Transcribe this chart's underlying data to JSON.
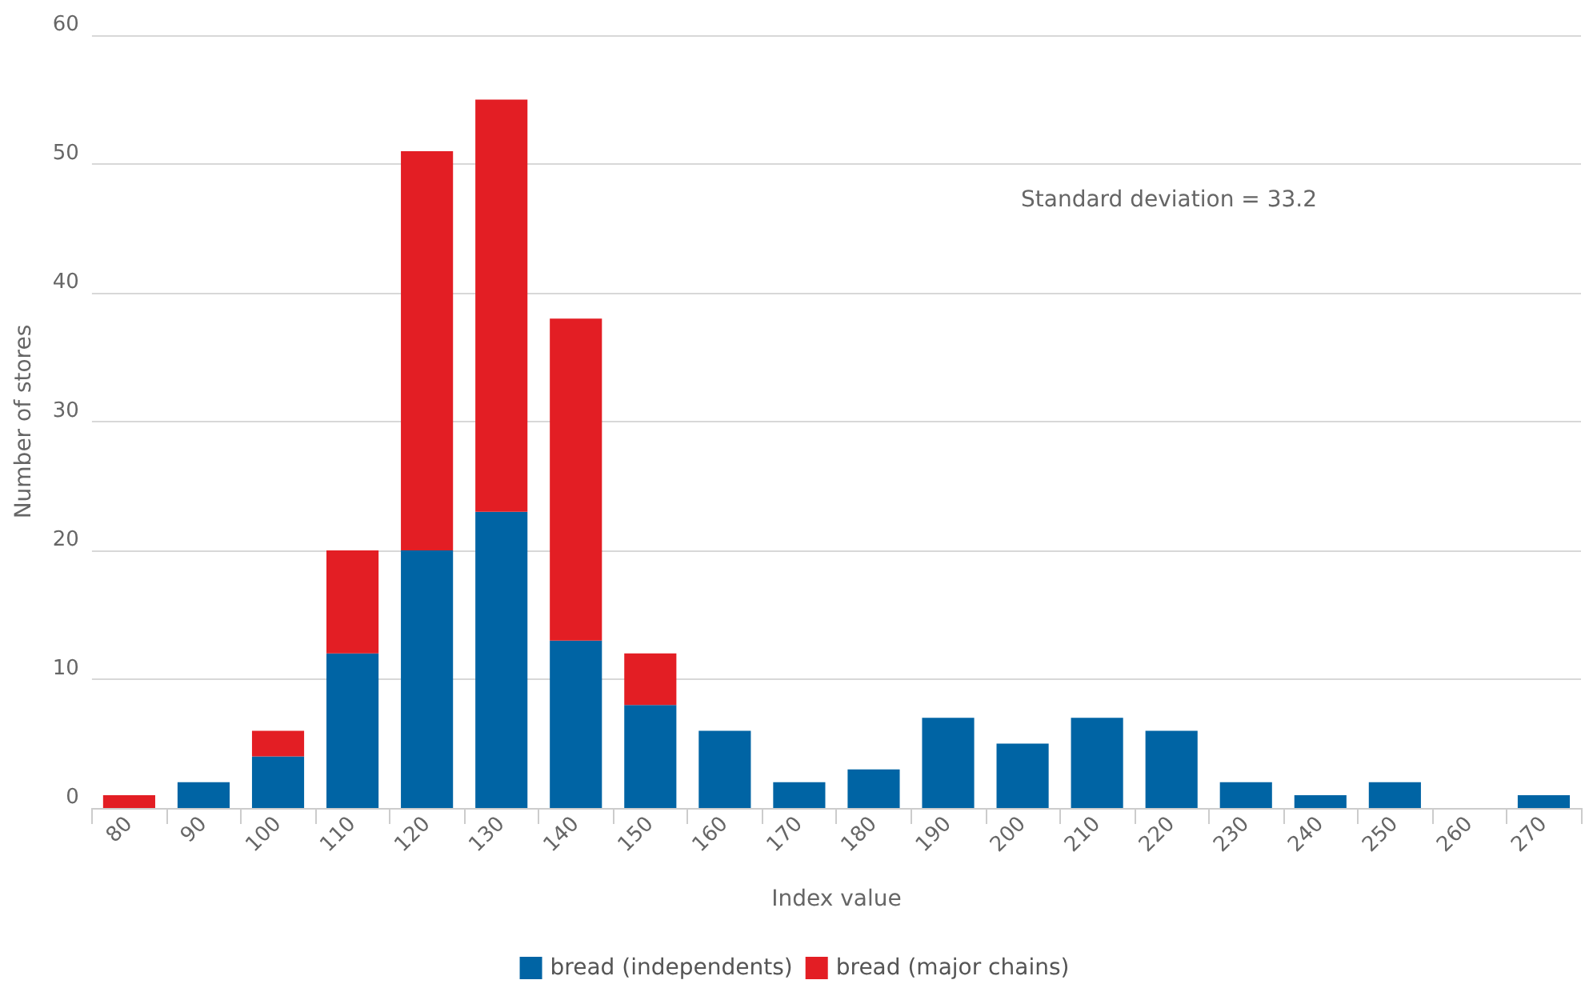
{
  "chart_data": {
    "type": "bar",
    "stacked": true,
    "xlabel": "Index value",
    "ylabel": "Number of stores",
    "categories": [
      "80",
      "90",
      "100",
      "110",
      "120",
      "130",
      "140",
      "150",
      "160",
      "170",
      "180",
      "190",
      "200",
      "210",
      "220",
      "230",
      "240",
      "250",
      "260",
      "270"
    ],
    "series": [
      {
        "name": "bread (independents)",
        "color": "#0064a4",
        "values": [
          0,
          2,
          4,
          12,
          20,
          23,
          13,
          8,
          6,
          2,
          3,
          7,
          5,
          7,
          6,
          2,
          1,
          2,
          0,
          1
        ]
      },
      {
        "name": "bread (major chains)",
        "color": "#e31e24",
        "values": [
          1,
          0,
          2,
          8,
          31,
          32,
          25,
          4,
          0,
          0,
          0,
          0,
          0,
          0,
          0,
          0,
          0,
          0,
          0,
          0
        ]
      }
    ],
    "ylim": [
      0,
      60
    ],
    "yticks": [
      0,
      10,
      20,
      30,
      40,
      50,
      60
    ],
    "grid": "y",
    "legend": "bottom",
    "annotations": [
      "Standard deviation = 33.2"
    ]
  }
}
